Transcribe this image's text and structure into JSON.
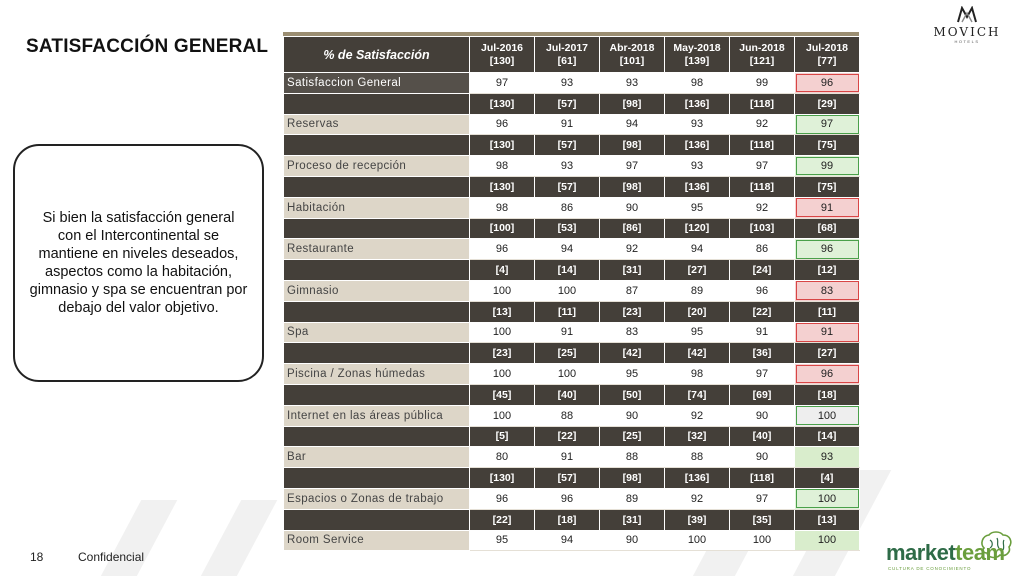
{
  "slide": {
    "title": "SATISFACCIÓN GENERAL",
    "callout": "Si bien la satisfacción general con el Intercontinental se mantiene en niveles deseados, aspectos como la habitación, gimnasio y spa se encuentran por debajo del valor objetivo.",
    "footer_page_number": "18",
    "footer_text": "Confidencial"
  },
  "brand": {
    "logo_name": "MOVICH",
    "logo_sub": "HOTELS",
    "partner_word_a": "market",
    "partner_word_b": "team",
    "partner_sub": "CULTURA DE CONOCIMIENTO",
    "icons": [
      "movich-logo-icon",
      "brain-icon"
    ],
    "colors": {
      "header_dark": "#443f39",
      "label_light": "#ddd6c8",
      "accent_gold": "#9b8e72",
      "red_flag": "#d84545",
      "green_flag": "#4aa04a",
      "brand_green": "#2e6b47"
    }
  },
  "table": {
    "header_title": "% de Satisfacción",
    "columns": [
      {
        "period": "Jul-2016",
        "n": "[130]"
      },
      {
        "period": "Jul-2017",
        "n": "[61]"
      },
      {
        "period": "Abr-2018",
        "n": "[101]"
      },
      {
        "period": "May-2018",
        "n": "[139]"
      },
      {
        "period": "Jun-2018",
        "n": "[121]"
      },
      {
        "period": "Jul-2018",
        "n": "[77]"
      }
    ],
    "rows": [
      {
        "label": "Satisfaccion General",
        "ns": [],
        "values": [
          "97",
          "93",
          "93",
          "98",
          "99",
          "96"
        ],
        "last_flag": "red"
      },
      {
        "label": "Reservas",
        "ns": [
          "[130]",
          "[57]",
          "[98]",
          "[136]",
          "[118]",
          "[29]"
        ],
        "values": [
          "96",
          "91",
          "94",
          "93",
          "92",
          "97"
        ],
        "last_flag": "green"
      },
      {
        "label": "Proceso de recepción",
        "ns": [
          "[130]",
          "[57]",
          "[98]",
          "[136]",
          "[118]",
          "[75]"
        ],
        "values": [
          "98",
          "93",
          "97",
          "93",
          "97",
          "99"
        ],
        "last_flag": "green"
      },
      {
        "label": "Habitación",
        "ns": [
          "[130]",
          "[57]",
          "[98]",
          "[136]",
          "[118]",
          "[75]"
        ],
        "values": [
          "98",
          "86",
          "90",
          "95",
          "92",
          "91"
        ],
        "last_flag": "red"
      },
      {
        "label": "Restaurante",
        "ns": [
          "[100]",
          "[53]",
          "[86]",
          "[120]",
          "[103]",
          "[68]"
        ],
        "values": [
          "96",
          "94",
          "92",
          "94",
          "86",
          "96"
        ],
        "last_flag": "green"
      },
      {
        "label": "Gimnasio",
        "ns": [
          "[4]",
          "[14]",
          "[31]",
          "[27]",
          "[24]",
          "[12]"
        ],
        "values": [
          "100",
          "100",
          "87",
          "89",
          "96",
          "83"
        ],
        "last_flag": "red"
      },
      {
        "label": "Spa",
        "ns": [
          "[13]",
          "[11]",
          "[23]",
          "[20]",
          "[22]",
          "[11]"
        ],
        "values": [
          "100",
          "91",
          "83",
          "95",
          "91",
          "91"
        ],
        "last_flag": "red"
      },
      {
        "label": "Piscina / Zonas húmedas",
        "ns": [
          "[23]",
          "[25]",
          "[42]",
          "[42]",
          "[36]",
          "[27]"
        ],
        "values": [
          "100",
          "100",
          "95",
          "98",
          "97",
          "96"
        ],
        "last_flag": "red"
      },
      {
        "label": "Internet en las áreas pública",
        "ns": [
          "[45]",
          "[40]",
          "[50]",
          "[74]",
          "[69]",
          "[18]"
        ],
        "values": [
          "100",
          "88",
          "90",
          "92",
          "90",
          "100"
        ],
        "last_flag": "gray"
      },
      {
        "label": "Bar",
        "ns": [
          "[5]",
          "[22]",
          "[25]",
          "[32]",
          "[40]",
          "[14]"
        ],
        "values": [
          "80",
          "91",
          "88",
          "88",
          "90",
          "93"
        ],
        "last_flag": "plain-green"
      },
      {
        "label": "Espacios o Zonas de trabajo",
        "ns": [
          "[130]",
          "[57]",
          "[98]",
          "[136]",
          "[118]",
          "[4]"
        ],
        "values": [
          "96",
          "96",
          "89",
          "92",
          "97",
          "100"
        ],
        "last_flag": "green"
      },
      {
        "label": "Room Service",
        "ns": [
          "[22]",
          "[18]",
          "[31]",
          "[39]",
          "[35]",
          "[13]"
        ],
        "values": [
          "95",
          "94",
          "90",
          "100",
          "100",
          "100"
        ],
        "last_flag": "plain-green"
      }
    ]
  }
}
